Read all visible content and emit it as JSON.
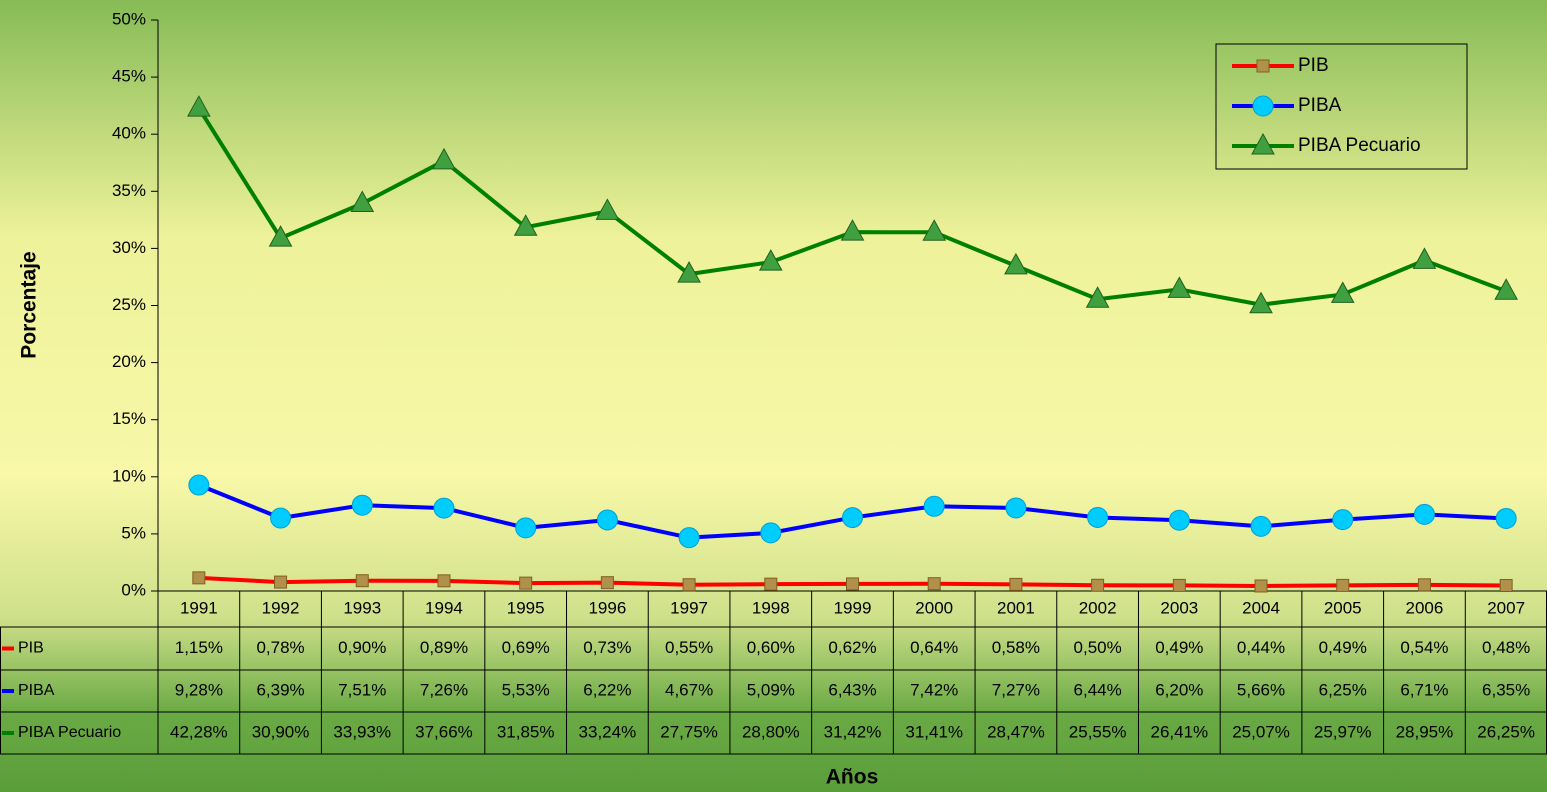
{
  "chart_data": {
    "type": "line",
    "x_label": "Años",
    "y_label": "Porcentaje",
    "categories": [
      "1991",
      "1992",
      "1993",
      "1994",
      "1995",
      "1996",
      "1997",
      "1998",
      "1999",
      "2000",
      "2001",
      "2002",
      "2003",
      "2004",
      "2005",
      "2006",
      "2007"
    ],
    "series": [
      {
        "name": "PIB",
        "color": "#ff0000",
        "marker_color": "#b0904a",
        "marker": "square",
        "values": [
          1.15,
          0.78,
          0.9,
          0.89,
          0.69,
          0.73,
          0.55,
          0.6,
          0.62,
          0.64,
          0.58,
          0.5,
          0.49,
          0.44,
          0.49,
          0.54,
          0.48
        ],
        "value_labels": [
          "1,15%",
          "0,78%",
          "0,90%",
          "0,89%",
          "0,69%",
          "0,73%",
          "0,55%",
          "0,60%",
          "0,62%",
          "0,64%",
          "0,58%",
          "0,50%",
          "0,49%",
          "0,44%",
          "0,49%",
          "0,54%",
          "0,48%"
        ]
      },
      {
        "name": "PIBA",
        "color": "#0000ff",
        "marker_color": "#00ccff",
        "marker": "circle",
        "values": [
          9.28,
          6.39,
          7.51,
          7.26,
          5.53,
          6.22,
          4.67,
          5.09,
          6.43,
          7.42,
          7.27,
          6.44,
          6.2,
          5.66,
          6.25,
          6.71,
          6.35
        ],
        "value_labels": [
          "9,28%",
          "6,39%",
          "7,51%",
          "7,26%",
          "5,53%",
          "6,22%",
          "4,67%",
          "5,09%",
          "6,43%",
          "7,42%",
          "7,27%",
          "6,44%",
          "6,20%",
          "5,66%",
          "6,25%",
          "6,71%",
          "6,35%"
        ]
      },
      {
        "name": "PIBA Pecuario",
        "color": "#008000",
        "marker_color": "#40a040",
        "marker": "triangle",
        "values": [
          42.28,
          30.9,
          33.93,
          37.66,
          31.85,
          33.24,
          27.75,
          28.8,
          31.42,
          31.41,
          28.47,
          25.55,
          26.41,
          25.07,
          25.97,
          28.95,
          26.25
        ],
        "value_labels": [
          "42,28%",
          "30,90%",
          "33,93%",
          "37,66%",
          "31,85%",
          "33,24%",
          "27,75%",
          "28,80%",
          "31,42%",
          "31,41%",
          "28,47%",
          "25,55%",
          "26,41%",
          "25,07%",
          "25,97%",
          "28,95%",
          "26,25%"
        ]
      }
    ],
    "ylim": [
      0,
      50
    ],
    "yticks": [
      {
        "value": 0,
        "label": "0%"
      },
      {
        "value": 5,
        "label": "5%"
      },
      {
        "value": 10,
        "label": "10%"
      },
      {
        "value": 15,
        "label": "15%"
      },
      {
        "value": 20,
        "label": "20%"
      },
      {
        "value": 25,
        "label": "25%"
      },
      {
        "value": 30,
        "label": "30%"
      },
      {
        "value": 35,
        "label": "35%"
      },
      {
        "value": 40,
        "label": "40%"
      },
      {
        "value": 45,
        "label": "45%"
      },
      {
        "value": 50,
        "label": "50%"
      }
    ],
    "legend": "upper right",
    "grid": false
  }
}
